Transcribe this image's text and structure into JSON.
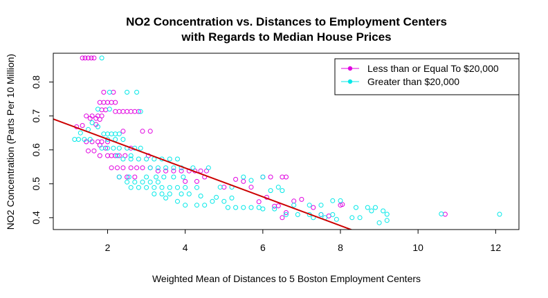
{
  "chart_data": {
    "type": "scatter",
    "title": [
      "NO2 Concentration vs. Distances to Employment Centers",
      "with Regards to Median House Prices"
    ],
    "xlabel": "Weighted Mean of Distances to 5 Boston Employment Centers",
    "ylabel": "NO2 Concentration (Parts Per 10 Million)",
    "xlim": [
      0.6,
      12.6
    ],
    "ylim": [
      0.365,
      0.885
    ],
    "xticks": [
      "2",
      "4",
      "6",
      "8",
      "10",
      "12"
    ],
    "yticks": [
      "0.4",
      "0.5",
      "0.6",
      "0.7",
      "0.8"
    ],
    "grid": false,
    "legend_position": "top-right",
    "series": [
      {
        "name": "Less than or Equal To $20,000",
        "color": "#e000e0",
        "points": [
          [
            1.35,
            0.871
          ],
          [
            1.42,
            0.871
          ],
          [
            1.5,
            0.871
          ],
          [
            1.58,
            0.871
          ],
          [
            1.65,
            0.871
          ],
          [
            1.2,
            0.668
          ],
          [
            1.35,
            0.672
          ],
          [
            1.45,
            0.7
          ],
          [
            1.55,
            0.693
          ],
          [
            1.6,
            0.7
          ],
          [
            1.7,
            0.693
          ],
          [
            1.75,
            0.7
          ],
          [
            1.8,
            0.69
          ],
          [
            1.7,
            0.675
          ],
          [
            1.85,
            0.7
          ],
          [
            1.85,
            0.718
          ],
          [
            1.95,
            0.718
          ],
          [
            1.8,
            0.74
          ],
          [
            1.9,
            0.74
          ],
          [
            2.0,
            0.74
          ],
          [
            2.1,
            0.74
          ],
          [
            2.2,
            0.74
          ],
          [
            1.9,
            0.77
          ],
          [
            2.15,
            0.77
          ],
          [
            2.2,
            0.713
          ],
          [
            2.3,
            0.713
          ],
          [
            2.4,
            0.713
          ],
          [
            2.5,
            0.713
          ],
          [
            2.6,
            0.713
          ],
          [
            2.7,
            0.713
          ],
          [
            2.8,
            0.713
          ],
          [
            1.45,
            0.624
          ],
          [
            1.6,
            0.624
          ],
          [
            1.75,
            0.624
          ],
          [
            1.85,
            0.624
          ],
          [
            2.0,
            0.624
          ],
          [
            1.5,
            0.597
          ],
          [
            1.65,
            0.597
          ],
          [
            1.8,
            0.614
          ],
          [
            1.95,
            0.605
          ],
          [
            1.8,
            0.583
          ],
          [
            2.0,
            0.583
          ],
          [
            2.1,
            0.583
          ],
          [
            2.2,
            0.583
          ],
          [
            2.3,
            0.583
          ],
          [
            2.45,
            0.583
          ],
          [
            2.1,
            0.547
          ],
          [
            2.25,
            0.547
          ],
          [
            2.4,
            0.547
          ],
          [
            2.6,
            0.547
          ],
          [
            2.75,
            0.547
          ],
          [
            2.9,
            0.547
          ],
          [
            3.1,
            0.547
          ],
          [
            2.3,
            0.52
          ],
          [
            2.5,
            0.52
          ],
          [
            2.7,
            0.52
          ],
          [
            2.9,
            0.655
          ],
          [
            3.1,
            0.655
          ],
          [
            2.4,
            0.655
          ],
          [
            2.6,
            0.605
          ],
          [
            3.05,
            0.583
          ],
          [
            3.5,
            0.538
          ],
          [
            3.7,
            0.538
          ],
          [
            3.9,
            0.538
          ],
          [
            4.1,
            0.538
          ],
          [
            4.25,
            0.538
          ],
          [
            4.4,
            0.538
          ],
          [
            4.55,
            0.538
          ],
          [
            3.3,
            0.538
          ],
          [
            4.0,
            0.507
          ],
          [
            4.3,
            0.507
          ],
          [
            4.5,
            0.52
          ],
          [
            5.0,
            0.49
          ],
          [
            5.3,
            0.513
          ],
          [
            5.5,
            0.507
          ],
          [
            5.7,
            0.49
          ],
          [
            5.9,
            0.447
          ],
          [
            6.0,
            0.52
          ],
          [
            6.2,
            0.52
          ],
          [
            6.5,
            0.52
          ],
          [
            6.6,
            0.52
          ],
          [
            6.1,
            0.46
          ],
          [
            6.3,
            0.434
          ],
          [
            6.4,
            0.435
          ],
          [
            6.6,
            0.415
          ],
          [
            6.8,
            0.449
          ],
          [
            7.0,
            0.454
          ],
          [
            7.3,
            0.43
          ],
          [
            7.5,
            0.409
          ],
          [
            8.0,
            0.437
          ],
          [
            8.05,
            0.439
          ],
          [
            7.7,
            0.405
          ],
          [
            10.7,
            0.41
          ],
          [
            6.5,
            0.4
          ]
        ]
      },
      {
        "name": "Greater than $20,000",
        "color": "#00e8e8",
        "points": [
          [
            1.15,
            0.631
          ],
          [
            1.25,
            0.631
          ],
          [
            1.4,
            0.631
          ],
          [
            1.55,
            0.631
          ],
          [
            1.3,
            0.65
          ],
          [
            1.5,
            0.66
          ],
          [
            1.6,
            0.68
          ],
          [
            1.75,
            0.668
          ],
          [
            1.85,
            0.871
          ],
          [
            1.75,
            0.72
          ],
          [
            2.05,
            0.77
          ],
          [
            2.5,
            0.77
          ],
          [
            2.75,
            0.77
          ],
          [
            2.05,
            0.72
          ],
          [
            2.85,
            0.713
          ],
          [
            1.85,
            0.605
          ],
          [
            1.9,
            0.647
          ],
          [
            2.0,
            0.647
          ],
          [
            2.1,
            0.647
          ],
          [
            2.2,
            0.647
          ],
          [
            2.3,
            0.647
          ],
          [
            2.0,
            0.631
          ],
          [
            2.2,
            0.631
          ],
          [
            2.4,
            0.631
          ],
          [
            2.0,
            0.605
          ],
          [
            2.15,
            0.605
          ],
          [
            2.3,
            0.605
          ],
          [
            2.5,
            0.605
          ],
          [
            2.7,
            0.605
          ],
          [
            2.85,
            0.605
          ],
          [
            2.25,
            0.583
          ],
          [
            2.6,
            0.583
          ],
          [
            2.4,
            0.573
          ],
          [
            2.6,
            0.573
          ],
          [
            2.8,
            0.573
          ],
          [
            3.0,
            0.573
          ],
          [
            3.2,
            0.573
          ],
          [
            3.4,
            0.573
          ],
          [
            3.6,
            0.573
          ],
          [
            3.8,
            0.573
          ],
          [
            2.3,
            0.52
          ],
          [
            2.55,
            0.52
          ],
          [
            2.5,
            0.505
          ],
          [
            2.7,
            0.505
          ],
          [
            2.9,
            0.505
          ],
          [
            3.1,
            0.505
          ],
          [
            3.3,
            0.505
          ],
          [
            2.6,
            0.489
          ],
          [
            2.8,
            0.489
          ],
          [
            3.0,
            0.489
          ],
          [
            3.2,
            0.489
          ],
          [
            3.4,
            0.489
          ],
          [
            3.6,
            0.489
          ],
          [
            3.8,
            0.489
          ],
          [
            4.0,
            0.489
          ],
          [
            4.3,
            0.489
          ],
          [
            3.0,
            0.52
          ],
          [
            3.25,
            0.52
          ],
          [
            3.45,
            0.52
          ],
          [
            3.7,
            0.52
          ],
          [
            3.95,
            0.52
          ],
          [
            3.1,
            0.547
          ],
          [
            3.3,
            0.547
          ],
          [
            3.5,
            0.547
          ],
          [
            3.7,
            0.547
          ],
          [
            3.9,
            0.547
          ],
          [
            4.2,
            0.547
          ],
          [
            4.6,
            0.547
          ],
          [
            3.2,
            0.47
          ],
          [
            3.4,
            0.47
          ],
          [
            3.6,
            0.47
          ],
          [
            3.9,
            0.47
          ],
          [
            4.1,
            0.47
          ],
          [
            4.4,
            0.464
          ],
          [
            4.7,
            0.448
          ],
          [
            5.0,
            0.448
          ],
          [
            3.5,
            0.458
          ],
          [
            3.8,
            0.448
          ],
          [
            4.0,
            0.437
          ],
          [
            4.3,
            0.437
          ],
          [
            4.5,
            0.437
          ],
          [
            4.8,
            0.46
          ],
          [
            4.9,
            0.49
          ],
          [
            5.2,
            0.49
          ],
          [
            5.1,
            0.43
          ],
          [
            5.3,
            0.43
          ],
          [
            5.5,
            0.43
          ],
          [
            5.7,
            0.43
          ],
          [
            5.9,
            0.43
          ],
          [
            5.5,
            0.52
          ],
          [
            5.7,
            0.51
          ],
          [
            5.2,
            0.458
          ],
          [
            6.0,
            0.426
          ],
          [
            6.3,
            0.426
          ],
          [
            6.6,
            0.409
          ],
          [
            6.9,
            0.409
          ],
          [
            7.2,
            0.409
          ],
          [
            7.5,
            0.409
          ],
          [
            7.8,
            0.409
          ],
          [
            6.0,
            0.52
          ],
          [
            6.2,
            0.48
          ],
          [
            6.5,
            0.48
          ],
          [
            6.8,
            0.437
          ],
          [
            7.2,
            0.437
          ],
          [
            7.5,
            0.437
          ],
          [
            7.8,
            0.45
          ],
          [
            8.0,
            0.45
          ],
          [
            7.3,
            0.4
          ],
          [
            7.6,
            0.4
          ],
          [
            7.9,
            0.395
          ],
          [
            8.3,
            0.4
          ],
          [
            8.5,
            0.4
          ],
          [
            8.8,
            0.42
          ],
          [
            9.1,
            0.42
          ],
          [
            9.0,
            0.385
          ],
          [
            8.4,
            0.43
          ],
          [
            8.7,
            0.43
          ],
          [
            8.9,
            0.43
          ],
          [
            9.2,
            0.41
          ],
          [
            9.2,
            0.392
          ],
          [
            10.6,
            0.411
          ],
          [
            12.1,
            0.41
          ],
          [
            6.4,
            0.49
          ]
        ]
      }
    ],
    "regression_line": {
      "color": "#cc0000",
      "intercept": 0.7165,
      "slope": -0.0425
    }
  }
}
